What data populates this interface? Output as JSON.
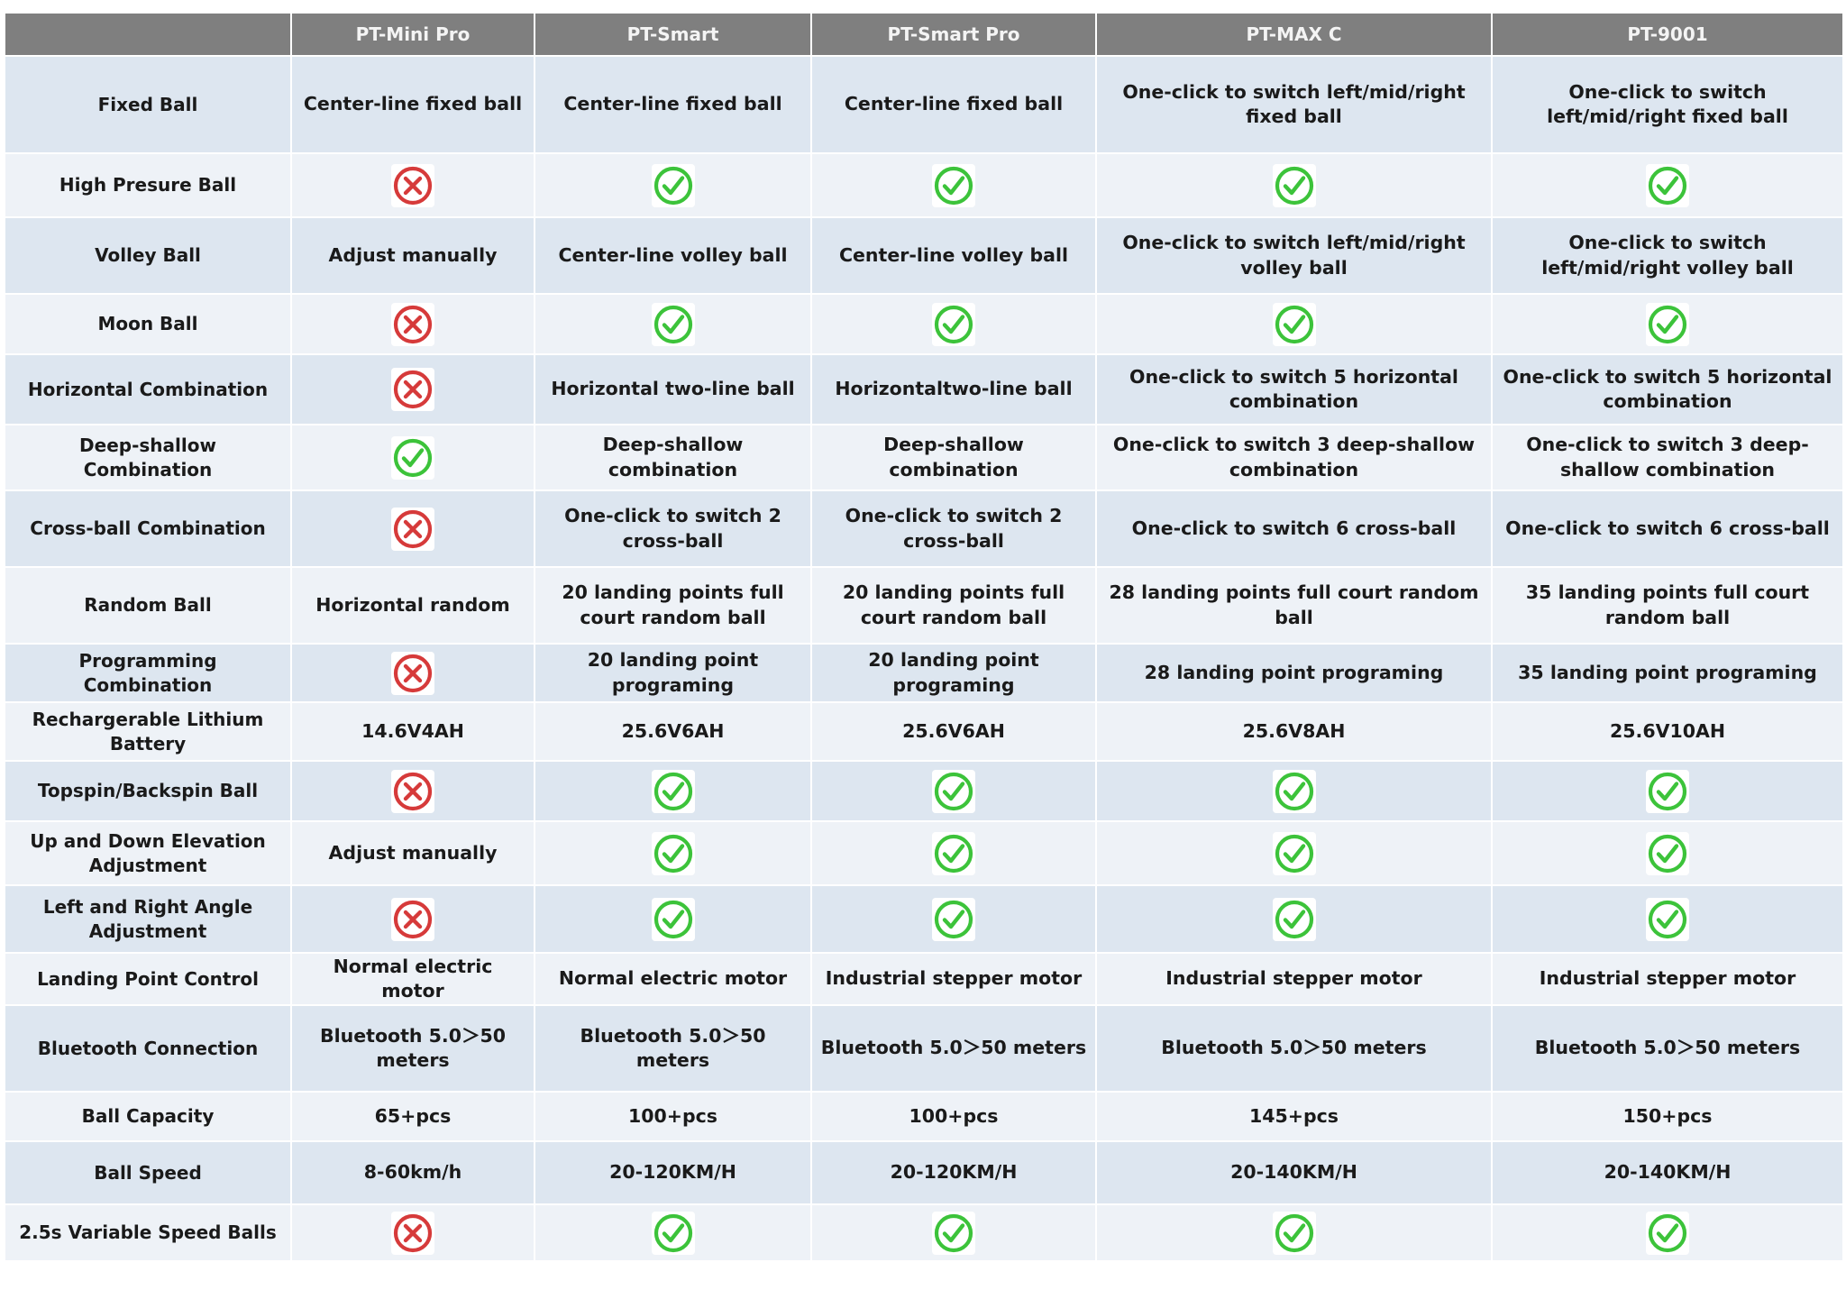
{
  "table": {
    "columns": [
      "",
      "PT-Mini Pro",
      "PT-Smart",
      "PT-Smart Pro",
      "PT-MAX C",
      "PT-9001"
    ],
    "rows": [
      {
        "label": "Fixed Ball",
        "cells": [
          {
            "text": "Center-line fixed ball"
          },
          {
            "text": "Center-line fixed ball"
          },
          {
            "text": "Center-line fixed ball"
          },
          {
            "text": "One-click to switch left/mid/right fixed ball"
          },
          {
            "text": "One-click to switch left/mid/right fixed ball"
          }
        ]
      },
      {
        "label": "High Presure Ball",
        "cells": [
          {
            "icon": "cross-icon"
          },
          {
            "icon": "check-icon"
          },
          {
            "icon": "check-icon"
          },
          {
            "icon": "check-icon"
          },
          {
            "icon": "check-icon"
          }
        ]
      },
      {
        "label": "Volley Ball",
        "cells": [
          {
            "text": "Adjust manually"
          },
          {
            "text": "Center-line volley ball"
          },
          {
            "text": "Center-line volley ball"
          },
          {
            "text": "One-click to switch left/mid/right volley ball"
          },
          {
            "text": "One-click to switch left/mid/right volley ball"
          }
        ]
      },
      {
        "label": "Moon Ball",
        "cells": [
          {
            "icon": "cross-icon"
          },
          {
            "icon": "check-icon"
          },
          {
            "icon": "check-icon"
          },
          {
            "icon": "check-icon"
          },
          {
            "icon": "check-icon"
          }
        ]
      },
      {
        "label": "Horizontal Combination",
        "cells": [
          {
            "icon": "cross-icon"
          },
          {
            "text": "Horizontal two-line ball"
          },
          {
            "text": "Horizontaltwo-line ball"
          },
          {
            "text": "One-click to switch 5 horizontal combination"
          },
          {
            "text": "One-click to switch 5 horizontal combination"
          }
        ]
      },
      {
        "label": "Deep-shallow Combination",
        "cells": [
          {
            "icon": "check-icon"
          },
          {
            "text": "Deep-shallow combination"
          },
          {
            "text": "Deep-shallow combination"
          },
          {
            "text": "One-click to switch 3 deep-shallow combination"
          },
          {
            "text": "One-click to switch 3 deep-shallow combination"
          }
        ]
      },
      {
        "label": "Cross-ball Combination",
        "cells": [
          {
            "icon": "cross-icon"
          },
          {
            "text": "One-click to switch 2 cross-ball"
          },
          {
            "text": "One-click to switch 2 cross-ball"
          },
          {
            "text": "One-click to switch 6 cross-ball"
          },
          {
            "text": "One-click to switch 6 cross-ball"
          }
        ]
      },
      {
        "label": "Random Ball",
        "cells": [
          {
            "text": "Horizontal random"
          },
          {
            "text": "20 landing points full court random ball"
          },
          {
            "text": "20 landing points full court random ball"
          },
          {
            "text": "28 landing points full court random ball"
          },
          {
            "text": "35 landing points full court random ball"
          }
        ]
      },
      {
        "label": "Programming Combination",
        "cells": [
          {
            "icon": "cross-icon"
          },
          {
            "text": "20 landing point programing"
          },
          {
            "text": "20 landing point programing"
          },
          {
            "text": "28 landing point programing"
          },
          {
            "text": "35 landing point programing"
          }
        ]
      },
      {
        "label": "Rechargerable Lithium Battery",
        "cells": [
          {
            "text": "14.6V4AH"
          },
          {
            "text": "25.6V6AH"
          },
          {
            "text": "25.6V6AH"
          },
          {
            "text": "25.6V8AH"
          },
          {
            "text": "25.6V10AH"
          }
        ]
      },
      {
        "label": "Topspin/Backspin Ball",
        "cells": [
          {
            "icon": "cross-icon"
          },
          {
            "icon": "check-icon"
          },
          {
            "icon": "check-icon"
          },
          {
            "icon": "check-icon"
          },
          {
            "icon": "check-icon"
          }
        ]
      },
      {
        "label": "Up and Down Elevation Adjustment",
        "cells": [
          {
            "text": "Adjust manually"
          },
          {
            "icon": "check-icon"
          },
          {
            "icon": "check-icon"
          },
          {
            "icon": "check-icon"
          },
          {
            "icon": "check-icon"
          }
        ]
      },
      {
        "label": "Left and Right Angle Adjustment",
        "cells": [
          {
            "icon": "cross-icon"
          },
          {
            "icon": "check-icon"
          },
          {
            "icon": "check-icon"
          },
          {
            "icon": "check-icon"
          },
          {
            "icon": "check-icon"
          }
        ]
      },
      {
        "label": "Landing Point Control",
        "cells": [
          {
            "text": "Normal electric motor"
          },
          {
            "text": "Normal electric motor"
          },
          {
            "text": "Industrial stepper motor"
          },
          {
            "text": "Industrial stepper motor"
          },
          {
            "text": "Industrial stepper motor"
          }
        ]
      },
      {
        "label": "Bluetooth Connection",
        "cells": [
          {
            "text": "Bluetooth 5.0＞50 meters"
          },
          {
            "text": "Bluetooth 5.0＞50 meters"
          },
          {
            "text": "Bluetooth 5.0＞50 meters"
          },
          {
            "text": "Bluetooth 5.0＞50 meters"
          },
          {
            "text": "Bluetooth 5.0＞50 meters"
          }
        ]
      },
      {
        "label": "Ball Capacity",
        "cells": [
          {
            "text": "65+pcs"
          },
          {
            "text": "100+pcs"
          },
          {
            "text": "100+pcs"
          },
          {
            "text": "145+pcs"
          },
          {
            "text": "150+pcs"
          }
        ]
      },
      {
        "label": "Ball Speed",
        "cells": [
          {
            "text": "8-60km/h"
          },
          {
            "text": "20-120KM/H"
          },
          {
            "text": "20-120KM/H"
          },
          {
            "text": "20-140KM/H"
          },
          {
            "text": "20-140KM/H"
          }
        ]
      },
      {
        "label": "2.5s Variable Speed Balls",
        "cells": [
          {
            "icon": "cross-icon"
          },
          {
            "icon": "check-icon"
          },
          {
            "icon": "check-icon"
          },
          {
            "icon": "check-icon"
          },
          {
            "icon": "check-icon"
          }
        ]
      }
    ]
  },
  "colors": {
    "header_bg": "#7f7f7f",
    "row_bg_odd": "#dde6f0",
    "row_bg_even": "#eef2f7",
    "check": "#3cc33a",
    "cross": "#d63a3a"
  }
}
